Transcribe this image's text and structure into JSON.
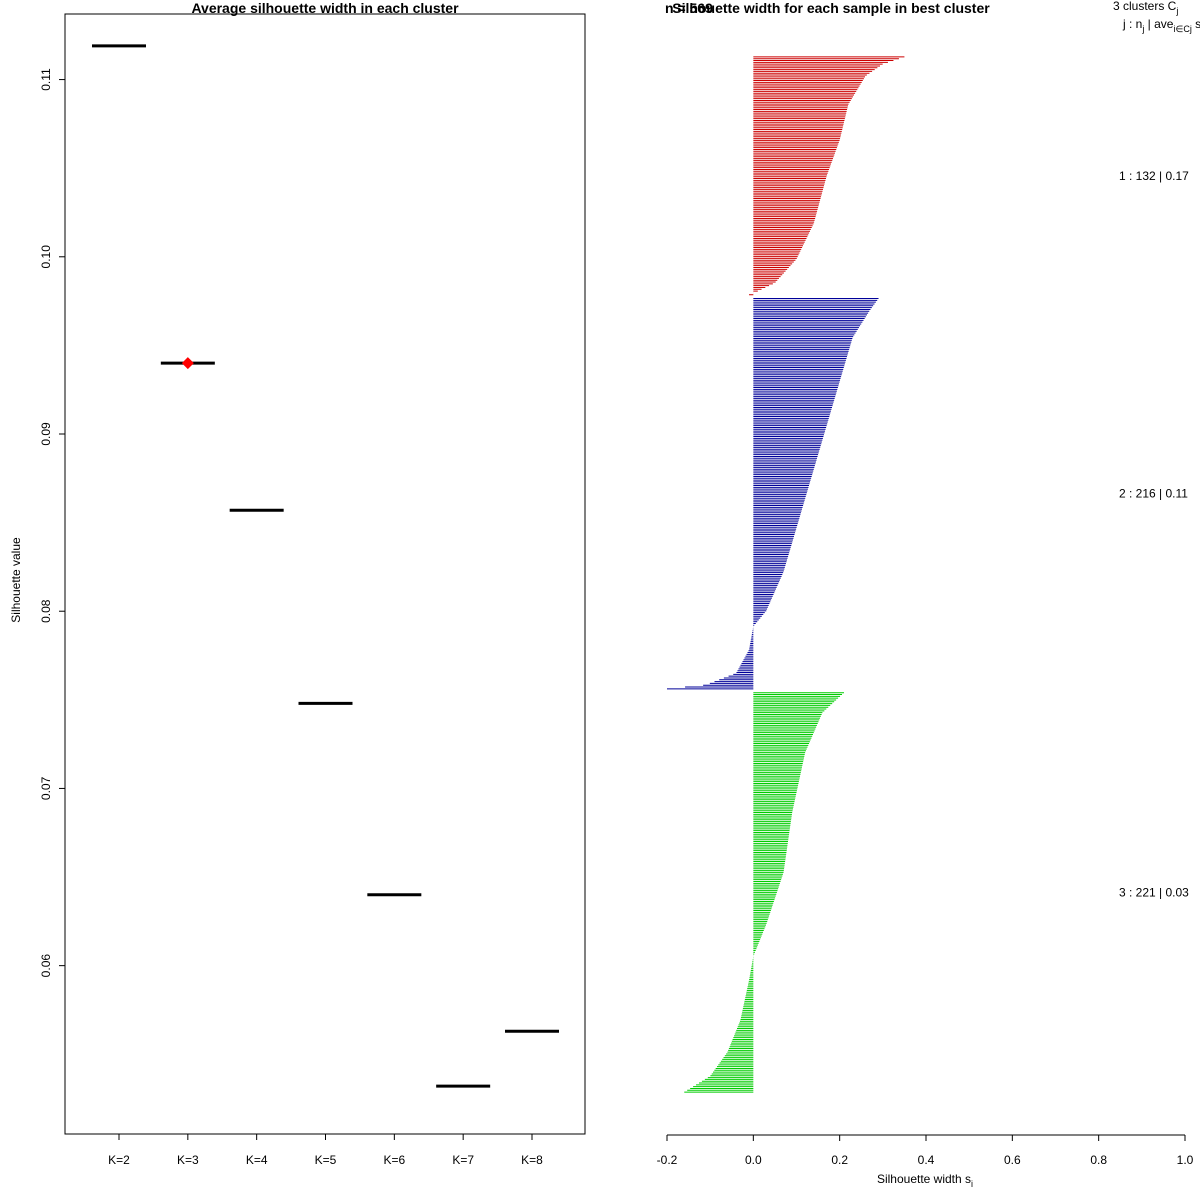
{
  "chart_data": [
    {
      "type": "scatter",
      "title": "Average silhouette width in each cluster",
      "xlabel": "",
      "ylabel": "Silhouette value",
      "categories": [
        "K=2",
        "K=3",
        "K=4",
        "K=5",
        "K=6",
        "K=7",
        "K=8"
      ],
      "values": [
        0.1119,
        0.094,
        0.0857,
        0.0748,
        0.064,
        0.0532,
        0.0563
      ],
      "best_category": "K=3",
      "best_marker_color": "#ff0000",
      "ylim": [
        0.0505,
        0.1137
      ],
      "y_ticks": [
        0.06,
        0.07,
        0.08,
        0.09,
        0.1,
        0.11
      ],
      "y_tick_labels": [
        "0.06",
        "0.07",
        "0.08",
        "0.09",
        "0.10",
        "0.11"
      ]
    },
    {
      "type": "bar",
      "orientation": "horizontal",
      "title": "Silhouette width for each sample in best cluster",
      "title_overlap_text": "n = 569",
      "xlabel": "Silhouette width s",
      "xlabel_subscript": "i",
      "xlim": [
        -0.2,
        1.0
      ],
      "x_ticks": [
        -0.2,
        0.0,
        0.2,
        0.4,
        0.6,
        0.8,
        1.0
      ],
      "x_tick_labels": [
        "-0.2",
        "0.0",
        "0.2",
        "0.4",
        "0.6",
        "0.8",
        "1.0"
      ],
      "header": {
        "line1": "3  clusters  C",
        "line1_sub": "j",
        "line2": "j :  n",
        "line2_sub": "j",
        "line2_mid": " | ave",
        "line2_sub2": "i∈Cj",
        "line2_tail": "  s"
      },
      "clusters": [
        {
          "label": "1 :   132  |  0.17",
          "size": 132,
          "color": "#cc0000",
          "profile": [
            [
              0.0,
              0.35
            ],
            [
              0.03,
              0.3
            ],
            [
              0.08,
              0.26
            ],
            [
              0.2,
              0.22
            ],
            [
              0.35,
              0.2
            ],
            [
              0.5,
              0.17
            ],
            [
              0.7,
              0.14
            ],
            [
              0.85,
              0.1
            ],
            [
              0.95,
              0.05
            ],
            [
              0.985,
              0.01
            ],
            [
              1.0,
              -0.01
            ]
          ]
        },
        {
          "label": "2 :   216  |  0.11",
          "size": 216,
          "color": "#000099",
          "profile": [
            [
              0.0,
              0.29
            ],
            [
              0.03,
              0.27
            ],
            [
              0.1,
              0.23
            ],
            [
              0.25,
              0.19
            ],
            [
              0.4,
              0.15
            ],
            [
              0.55,
              0.11
            ],
            [
              0.7,
              0.07
            ],
            [
              0.8,
              0.03
            ],
            [
              0.84,
              0.0
            ],
            [
              0.9,
              -0.01
            ],
            [
              0.96,
              -0.04
            ],
            [
              0.99,
              -0.11
            ],
            [
              1.0,
              -0.2
            ]
          ]
        },
        {
          "label": "3 :   221  |  0.03",
          "size": 221,
          "color": "#00cc00",
          "profile": [
            [
              0.0,
              0.21
            ],
            [
              0.05,
              0.16
            ],
            [
              0.15,
              0.12
            ],
            [
              0.3,
              0.09
            ],
            [
              0.45,
              0.07
            ],
            [
              0.58,
              0.03
            ],
            [
              0.66,
              0.0
            ],
            [
              0.72,
              -0.01
            ],
            [
              0.82,
              -0.03
            ],
            [
              0.9,
              -0.06
            ],
            [
              0.96,
              -0.1
            ],
            [
              1.0,
              -0.16
            ]
          ]
        }
      ]
    }
  ]
}
